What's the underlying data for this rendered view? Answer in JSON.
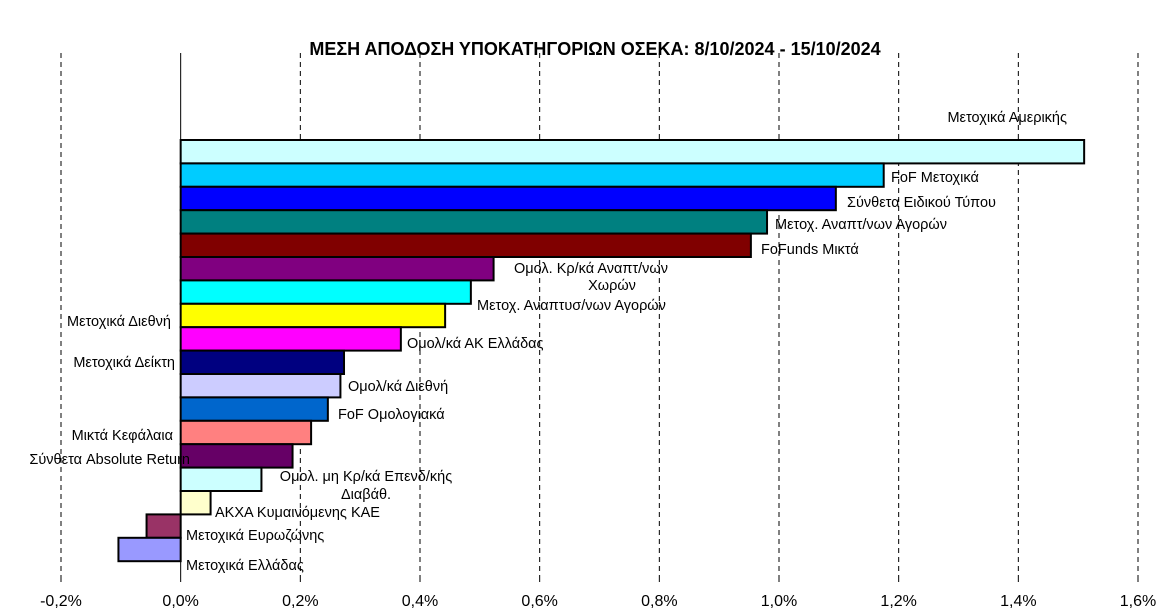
{
  "chart_data": {
    "type": "bar",
    "orientation": "horizontal",
    "title": "ΜΕΣΗ ΑΠΟΔΟΣΗ ΥΠΟΚΑΤΗΓΟΡΙΩΝ ΟΣΕΚΑ: 8/10/2024 - 15/10/2024",
    "xlim": [
      -0.2,
      1.6
    ],
    "x_tick_labels": [
      "-0,2%",
      "0,0%",
      "0,2%",
      "0,4%",
      "0,6%",
      "0,8%",
      "1,0%",
      "1,2%",
      "1,4%",
      "1,6%"
    ],
    "grid": true,
    "categories": [
      {
        "label": [
          "Μετοχικά Αμερικής"
        ],
        "value": 1.51,
        "color": "#CCFFFF"
      },
      {
        "label": [
          "FoF Μετοχικά"
        ],
        "value": 1.175,
        "color": "#00CCFF"
      },
      {
        "label": [
          "Σύνθετα Ειδικού Τύπου"
        ],
        "value": 1.095,
        "color": "#0000FF"
      },
      {
        "label": [
          "Μετοχ. Αναπτ/νων Αγορών"
        ],
        "value": 0.98,
        "color": "#008080"
      },
      {
        "label": [
          "FoFunds Μικτά"
        ],
        "value": 0.953,
        "color": "#800000"
      },
      {
        "label": [
          "Ομολ. Κρ/κά Αναπτ/νων",
          "Χωρών"
        ],
        "value": 0.523,
        "color": "#800080"
      },
      {
        "label": [
          "Μετοχ. Αναπτυσ/νων Αγορών"
        ],
        "value": 0.485,
        "color": "#00FFFF"
      },
      {
        "label": [
          "Μετοχικά Διεθνή"
        ],
        "value": 0.442,
        "color": "#FFFF00"
      },
      {
        "label": [
          "Ομολ/κά ΑΚ Ελλάδας"
        ],
        "value": 0.368,
        "color": "#FF00FF"
      },
      {
        "label": [
          "Μετοχικά Δείκτη"
        ],
        "value": 0.273,
        "color": "#000080"
      },
      {
        "label": [
          "Ομολ/κά Διεθνή"
        ],
        "value": 0.267,
        "color": "#CCCCFF"
      },
      {
        "label": [
          "FoF Ομολογιακά"
        ],
        "value": 0.246,
        "color": "#0066CC"
      },
      {
        "label": [
          "Μικτά Κεφάλαια"
        ],
        "value": 0.218,
        "color": "#FF8080"
      },
      {
        "label": [
          "Σύνθετα Absolute Return"
        ],
        "value": 0.187,
        "color": "#660066"
      },
      {
        "label": [
          "Ομολ. μη Κρ/κά Επενδ/κής",
          "Διαβάθ."
        ],
        "value": 0.135,
        "color": "#CCFFFF"
      },
      {
        "label": [
          "ΑΚΧΑ Κυμαινόμενης  ΚΑΕ"
        ],
        "value": 0.05,
        "color": "#FFFFCC"
      },
      {
        "label": [
          "Μετοχικά Ευρωζώνης"
        ],
        "value": -0.057,
        "color": "#993366"
      },
      {
        "label": [
          "Μετοχικά Ελλάδας"
        ],
        "value": -0.104,
        "color": "#9999FF"
      }
    ]
  }
}
